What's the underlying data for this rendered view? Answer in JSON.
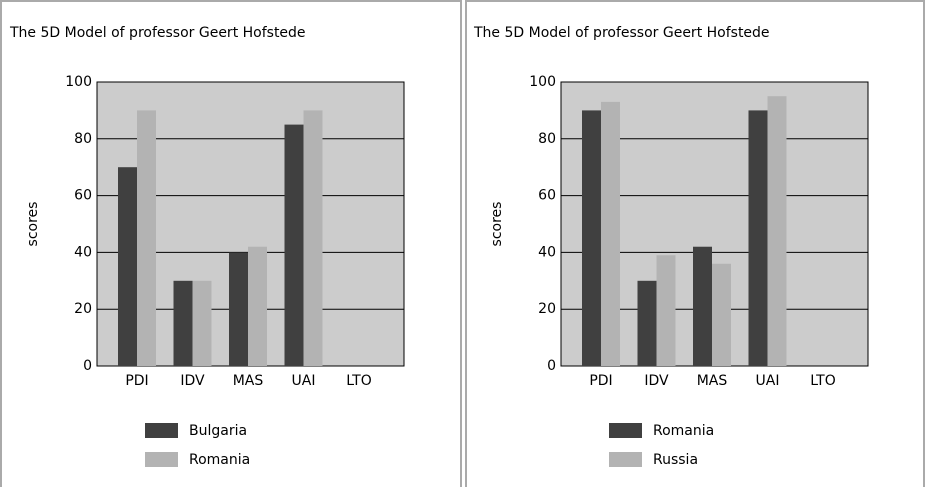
{
  "chart_data": [
    {
      "type": "bar",
      "title": "The 5D Model of professor Geert Hofstede",
      "y_label": "scores",
      "categories": [
        "PDI",
        "IDV",
        "MAS",
        "UAI",
        "LTO"
      ],
      "series": [
        {
          "name": "Bulgaria",
          "color": "#404040",
          "values": [
            70,
            30,
            40,
            85,
            null
          ]
        },
        {
          "name": "Romania",
          "color": "#b3b3b3",
          "values": [
            90,
            30,
            42,
            90,
            null
          ]
        }
      ],
      "ylim": [
        0,
        100
      ],
      "yticks": [
        0,
        20,
        40,
        60,
        80,
        100
      ],
      "grid": true,
      "legend": "bottom"
    },
    {
      "type": "bar",
      "title": "The 5D Model of professor Geert Hofstede",
      "y_label": "scores",
      "categories": [
        "PDI",
        "IDV",
        "MAS",
        "UAI",
        "LTO"
      ],
      "series": [
        {
          "name": "Romania",
          "color": "#404040",
          "values": [
            90,
            30,
            42,
            90,
            null
          ]
        },
        {
          "name": "Russia",
          "color": "#b3b3b3",
          "values": [
            93,
            39,
            36,
            95,
            null
          ]
        }
      ],
      "ylim": [
        0,
        100
      ],
      "yticks": [
        0,
        20,
        40,
        60,
        80,
        100
      ],
      "grid": true,
      "legend": "bottom"
    }
  ]
}
